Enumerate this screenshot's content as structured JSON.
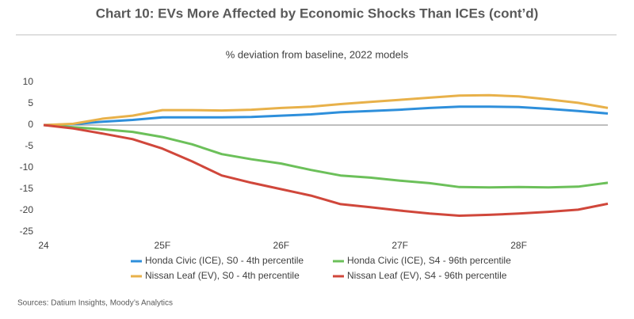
{
  "chart_data": {
    "type": "line",
    "title": "Chart 10: EVs More Affected by Economic Shocks Than ICEs (cont’d)",
    "subtitle": "% deviation from baseline, 2022 models",
    "source": "Sources: Datium Insights, Moody’s Analytics",
    "x": [
      24,
      24.25,
      24.5,
      24.75,
      25,
      25.25,
      25.5,
      25.75,
      26,
      26.25,
      26.5,
      26.75,
      27,
      27.25,
      27.5,
      27.75,
      28,
      28.25,
      28.5,
      28.75
    ],
    "xlim": [
      24,
      28.75
    ],
    "xticks": [
      24,
      {
        "value": 25,
        "label": "25F"
      },
      {
        "value": 26,
        "label": "26F"
      },
      {
        "value": 27,
        "label": "27F"
      },
      {
        "value": 28,
        "label": "28F"
      }
    ],
    "ylim": [
      -25,
      10
    ],
    "yticks": [
      10,
      5,
      0,
      -5,
      -10,
      -15,
      -20,
      -25
    ],
    "series": [
      {
        "name": "Honda Civic (ICE), S0 - 4th percentile",
        "color": "#2e8fdb",
        "values": [
          0,
          0.2,
          0.8,
          1.2,
          1.8,
          1.8,
          1.8,
          1.9,
          2.2,
          2.5,
          3.0,
          3.3,
          3.6,
          4.0,
          4.3,
          4.3,
          4.2,
          3.8,
          3.3,
          2.7
        ]
      },
      {
        "name": "Honda Civic (ICE), S4 - 96th percentile",
        "color": "#6cc05a",
        "values": [
          0,
          -0.5,
          -1.0,
          -1.6,
          -2.8,
          -4.5,
          -6.8,
          -8.0,
          -9.0,
          -10.5,
          -11.8,
          -12.3,
          -13.0,
          -13.6,
          -14.5,
          -14.6,
          -14.5,
          -14.6,
          -14.4,
          -13.5
        ]
      },
      {
        "name": "Nissan Leaf (EV), S0 - 4th percentile",
        "color": "#e8b14a",
        "values": [
          0,
          0.3,
          1.5,
          2.2,
          3.5,
          3.5,
          3.4,
          3.6,
          4.0,
          4.3,
          4.9,
          5.4,
          5.9,
          6.4,
          6.9,
          7.0,
          6.7,
          6.0,
          5.2,
          4.0
        ]
      },
      {
        "name": "Nissan Leaf (EV), S4 - 96th percentile",
        "color": "#d0473b",
        "values": [
          0,
          -0.8,
          -2.0,
          -3.3,
          -5.5,
          -8.5,
          -11.8,
          -13.5,
          -15.0,
          -16.5,
          -18.5,
          -19.2,
          -20.0,
          -20.7,
          -21.2,
          -21.0,
          -20.7,
          -20.3,
          -19.8,
          -18.4
        ]
      }
    ]
  }
}
